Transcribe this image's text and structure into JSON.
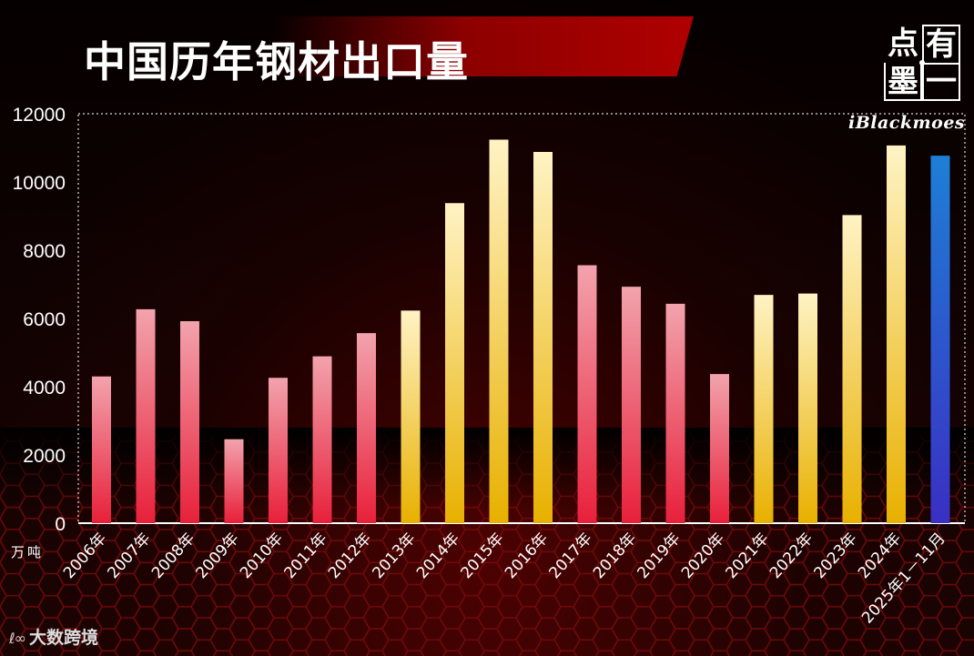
{
  "header": {
    "title": "中国历年钢材出口量",
    "logo_chars": [
      "点",
      "有",
      "墨",
      "一"
    ],
    "watermark": "iBlackmoes"
  },
  "footer": {
    "source_mark": "ℓ∞",
    "source_name": "大数跨境"
  },
  "colors": {
    "red_bar_top": "#f2a3ad",
    "red_bar_bottom": "#e8203a",
    "gold_bar_top": "#fff3c4",
    "gold_bar_bottom": "#e8b000",
    "blue_bar_top": "#1e7fd6",
    "blue_bar_bottom": "#3a2fc4"
  },
  "chart_data": {
    "type": "bar",
    "title": "中国历年钢材出口量",
    "ylabel": "万吨",
    "ylim": [
      0,
      12000
    ],
    "yticks": [
      "0",
      "2000",
      "4000",
      "6000",
      "8000",
      "10000",
      "12000"
    ],
    "categories": [
      "2006年",
      "2007年",
      "2008年",
      "2009年",
      "2010年",
      "2011年",
      "2012年",
      "2013年",
      "2014年",
      "2015年",
      "2016年",
      "2017年",
      "2018年",
      "2019年",
      "2020年",
      "2021年",
      "2022年",
      "2023年",
      "2024年",
      "2025年1－11月"
    ],
    "values": [
      4300,
      6270,
      5920,
      2460,
      4260,
      4890,
      5570,
      6230,
      9380,
      11240,
      10880,
      7560,
      6930,
      6430,
      4370,
      6690,
      6730,
      9030,
      11070,
      10770
    ],
    "bar_color_groups": [
      "red",
      "red",
      "red",
      "red",
      "red",
      "red",
      "red",
      "gold",
      "gold",
      "gold",
      "gold",
      "red",
      "red",
      "red",
      "red",
      "gold",
      "gold",
      "gold",
      "gold",
      "blue"
    ]
  }
}
